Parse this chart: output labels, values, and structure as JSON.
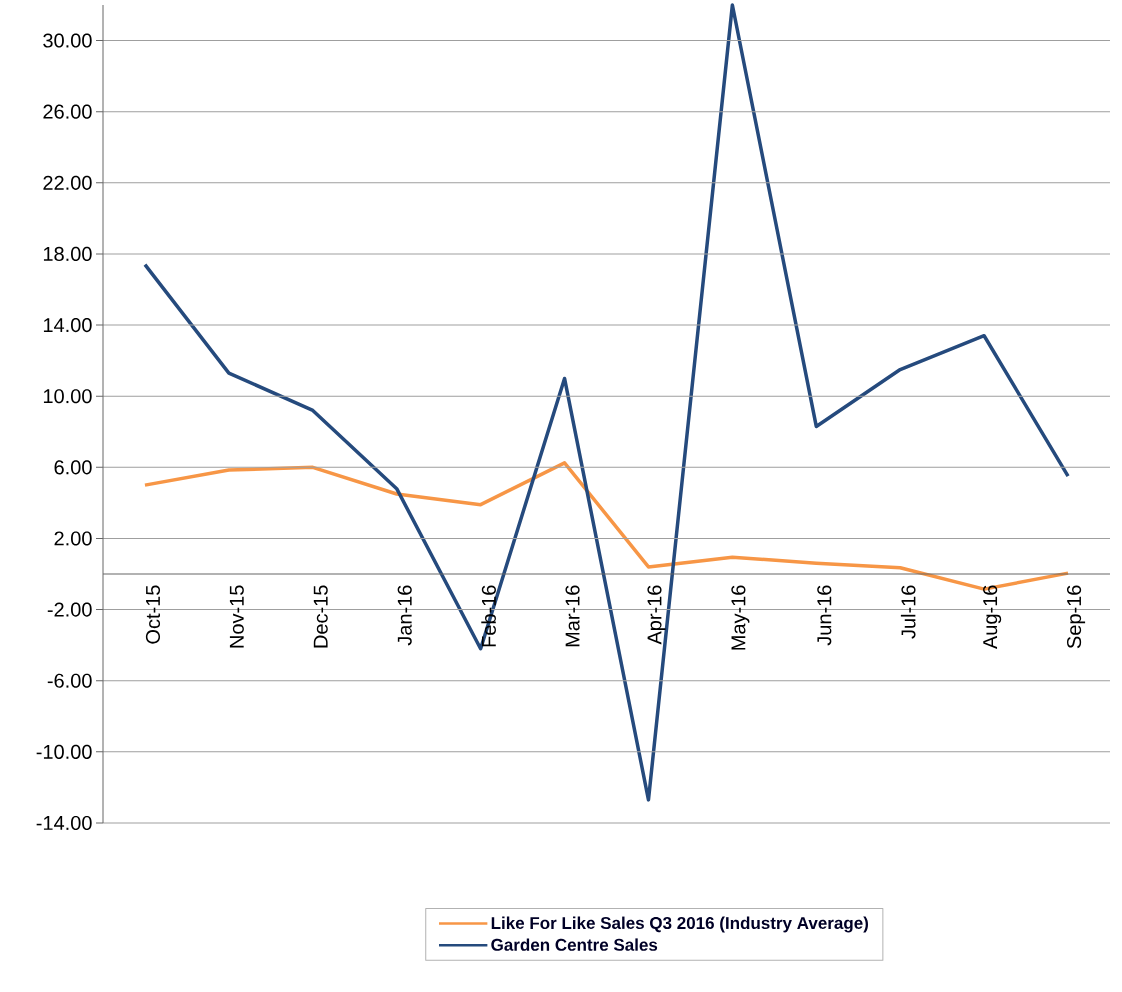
{
  "chart_data": {
    "type": "line",
    "categories": [
      "Oct-15",
      "Nov-15",
      "Dec-15",
      "Jan-16",
      "Feb-16",
      "Mar-16",
      "Apr-16",
      "May-16",
      "Jun-16",
      "Jul-16",
      "Aug-16",
      "Sep-16"
    ],
    "series": [
      {
        "name": "Like For Like Sales Q3 2016 (Industry Average)",
        "color": "#f79646",
        "values": [
          5.0,
          5.85,
          6.0,
          4.5,
          3.9,
          6.25,
          0.4,
          0.95,
          0.6,
          0.35,
          -0.85,
          0.05
        ]
      },
      {
        "name": "Garden Centre Sales",
        "color": "#254a7d",
        "values": [
          17.4,
          11.3,
          9.2,
          4.8,
          -4.2,
          11.0,
          -12.7,
          32.0,
          8.3,
          11.5,
          13.4,
          5.5
        ]
      }
    ],
    "ylim": [
      -14,
      32
    ],
    "yticks": [
      {
        "value": -14,
        "label": "-14.00"
      },
      {
        "value": -10,
        "label": "-10.00"
      },
      {
        "value": -6,
        "label": "-6.00"
      },
      {
        "value": -2,
        "label": "-2.00"
      },
      {
        "value": 2,
        "label": "2.00"
      },
      {
        "value": 6,
        "label": "6.00"
      },
      {
        "value": 10,
        "label": "10.00"
      },
      {
        "value": 14,
        "label": "14.00"
      },
      {
        "value": 18,
        "label": "18.00"
      },
      {
        "value": 22,
        "label": "22.00"
      },
      {
        "value": 26,
        "label": "26.00"
      },
      {
        "value": 30,
        "label": "30.00"
      }
    ],
    "grid": "y",
    "legend": "bottom",
    "marker": "none",
    "line_style": "solid"
  }
}
